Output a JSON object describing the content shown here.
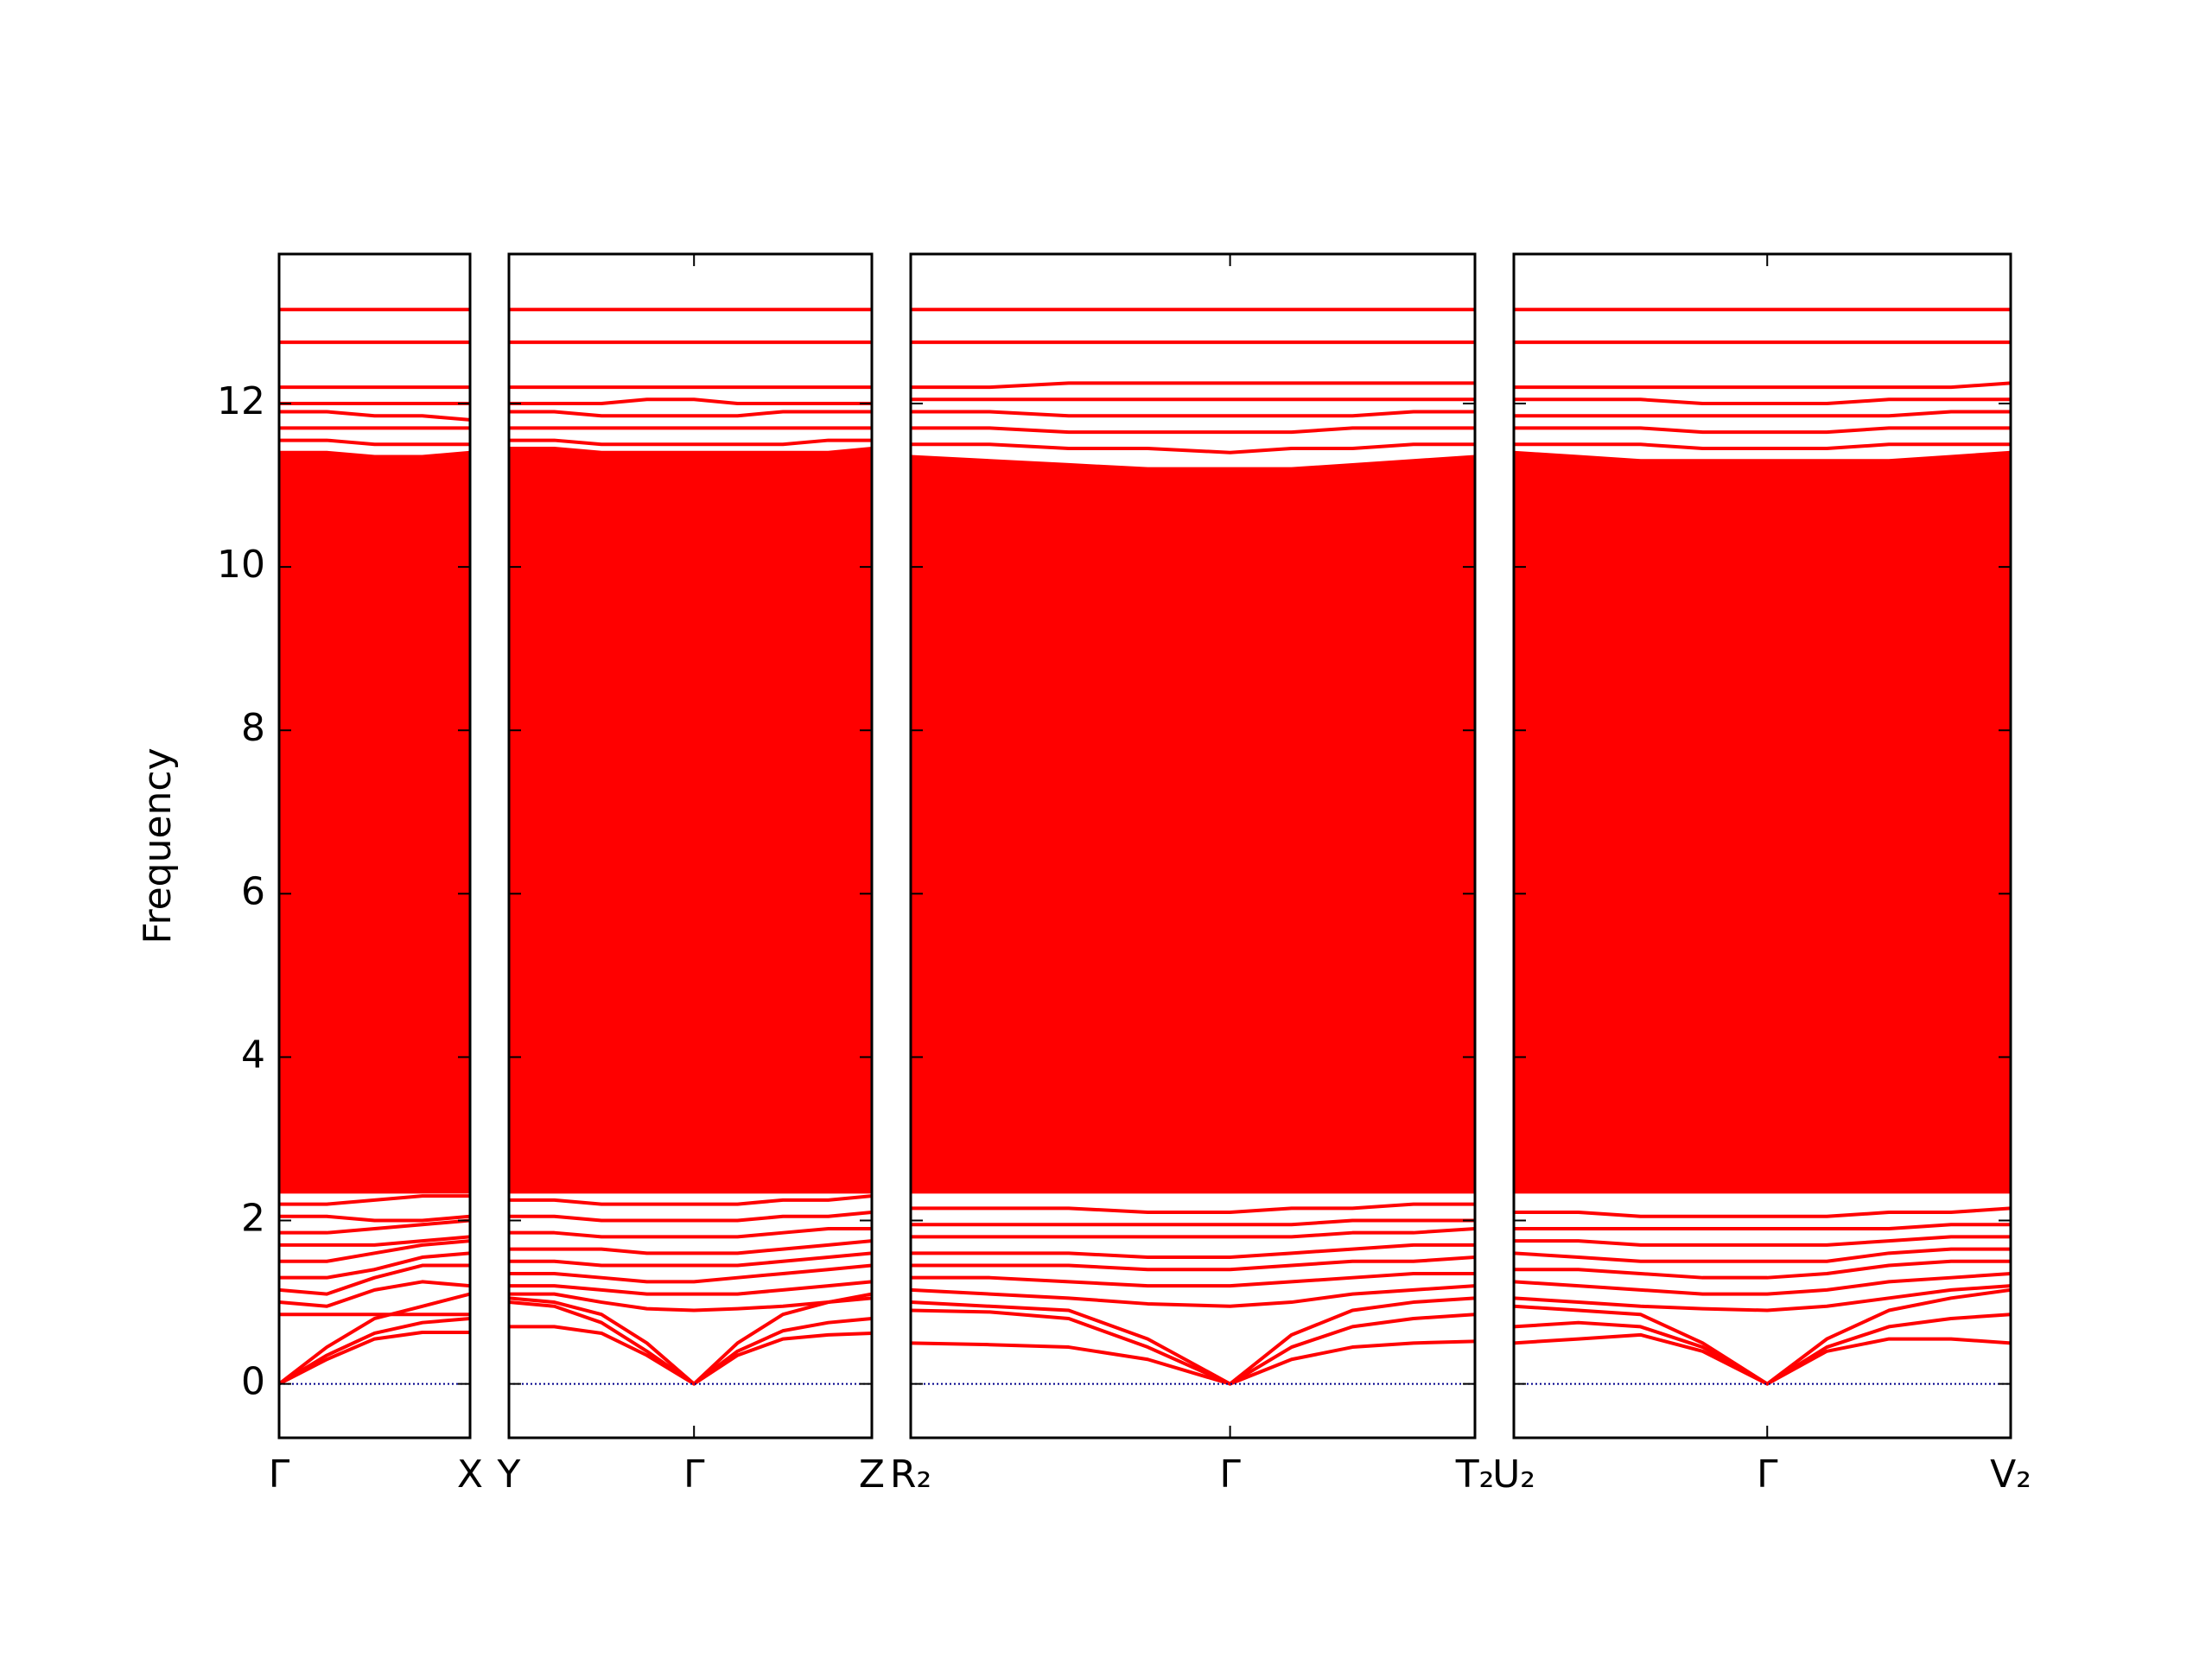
{
  "chart_data": [
    {
      "type": "line",
      "ylabel": "Frequency",
      "color": "#ff0000",
      "x": [
        0,
        0.25,
        0.5,
        0.75,
        1
      ],
      "xlim": [
        0,
        1
      ],
      "xticks": [
        {
          "value": 0,
          "label": "Γ"
        },
        {
          "value": 1,
          "label": "X"
        }
      ],
      "ylim": [
        -0.66,
        13.83
      ],
      "yticks": [
        0,
        2,
        4,
        6,
        8,
        10,
        12
      ],
      "ytick_labels": true,
      "zero_line": {
        "y": 0,
        "color": "#00008b"
      },
      "envelope": {
        "lower": [
          2.35,
          2.35,
          2.35,
          2.35,
          2.35
        ],
        "upper": [
          11.4,
          11.4,
          11.35,
          11.35,
          11.4
        ]
      },
      "series": [
        {
          "values": [
            0,
            0.3,
            0.55,
            0.63,
            0.63
          ]
        },
        {
          "values": [
            0,
            0.35,
            0.62,
            0.75,
            0.8
          ]
        },
        {
          "values": [
            0,
            0.45,
            0.8,
            0.95,
            1.1
          ]
        },
        {
          "values": [
            0.85,
            0.85,
            0.85,
            0.85,
            0.85
          ]
        },
        {
          "values": [
            1.0,
            0.95,
            1.15,
            1.25,
            1.2
          ]
        },
        {
          "values": [
            1.15,
            1.1,
            1.3,
            1.45,
            1.45
          ]
        },
        {
          "values": [
            1.3,
            1.3,
            1.4,
            1.55,
            1.6
          ]
        },
        {
          "values": [
            1.5,
            1.5,
            1.6,
            1.7,
            1.75
          ]
        },
        {
          "values": [
            1.7,
            1.7,
            1.7,
            1.75,
            1.8
          ]
        },
        {
          "values": [
            1.85,
            1.85,
            1.9,
            1.95,
            2.0
          ]
        },
        {
          "values": [
            2.05,
            2.05,
            2.0,
            2.0,
            2.05
          ]
        },
        {
          "values": [
            2.2,
            2.2,
            2.25,
            2.3,
            2.3
          ]
        },
        {
          "values": [
            11.55,
            11.55,
            11.5,
            11.5,
            11.5
          ]
        },
        {
          "values": [
            11.7,
            11.7,
            11.7,
            11.7,
            11.7
          ]
        },
        {
          "values": [
            11.9,
            11.9,
            11.85,
            11.85,
            11.8
          ]
        },
        {
          "values": [
            12.0,
            12.0,
            12.0,
            12.0,
            12.0
          ]
        },
        {
          "values": [
            12.2,
            12.2,
            12.2,
            12.2,
            12.2
          ]
        },
        {
          "values": [
            12.75,
            12.75,
            12.75,
            12.75,
            12.75
          ]
        },
        {
          "values": [
            13.15,
            13.15,
            13.15,
            13.15,
            13.15
          ]
        }
      ]
    },
    {
      "type": "line",
      "color": "#ff0000",
      "x": [
        0,
        0.125,
        0.255,
        0.38,
        0.51,
        0.63,
        0.755,
        0.88,
        1
      ],
      "xlim": [
        0,
        1
      ],
      "xticks": [
        {
          "value": 0,
          "label": "Y"
        },
        {
          "value": 0.51,
          "label": "Γ"
        },
        {
          "value": 1,
          "label": "Z"
        }
      ],
      "ylim": [
        -0.66,
        13.83
      ],
      "yticks": [
        0,
        2,
        4,
        6,
        8,
        10,
        12
      ],
      "zero_line": {
        "y": 0,
        "color": "#00008b"
      },
      "envelope": {
        "lower": [
          2.35,
          2.35,
          2.35,
          2.35,
          2.35,
          2.35,
          2.35,
          2.35,
          2.35
        ],
        "upper": [
          11.45,
          11.45,
          11.4,
          11.4,
          11.4,
          11.4,
          11.4,
          11.4,
          11.45
        ]
      },
      "series": [
        {
          "values": [
            1.0,
            0.95,
            0.75,
            0.4,
            0,
            0.35,
            0.55,
            0.6,
            0.62
          ]
        },
        {
          "values": [
            0.7,
            0.7,
            0.62,
            0.35,
            0,
            0.4,
            0.65,
            0.75,
            0.8
          ]
        },
        {
          "values": [
            1.05,
            1.0,
            0.85,
            0.5,
            0,
            0.5,
            0.85,
            1.0,
            1.05
          ]
        },
        {
          "values": [
            1.1,
            1.1,
            1.0,
            0.92,
            0.9,
            0.92,
            0.95,
            1.0,
            1.1
          ]
        },
        {
          "values": [
            1.2,
            1.2,
            1.15,
            1.1,
            1.1,
            1.1,
            1.15,
            1.2,
            1.25
          ]
        },
        {
          "values": [
            1.35,
            1.35,
            1.3,
            1.25,
            1.25,
            1.3,
            1.35,
            1.4,
            1.45
          ]
        },
        {
          "values": [
            1.5,
            1.5,
            1.45,
            1.45,
            1.45,
            1.45,
            1.5,
            1.55,
            1.6
          ]
        },
        {
          "values": [
            1.65,
            1.65,
            1.65,
            1.6,
            1.6,
            1.6,
            1.65,
            1.7,
            1.75
          ]
        },
        {
          "values": [
            1.85,
            1.85,
            1.8,
            1.8,
            1.8,
            1.8,
            1.85,
            1.9,
            1.9
          ]
        },
        {
          "values": [
            2.05,
            2.05,
            2.0,
            2.0,
            2.0,
            2.0,
            2.05,
            2.05,
            2.1
          ]
        },
        {
          "values": [
            2.25,
            2.25,
            2.2,
            2.2,
            2.2,
            2.2,
            2.25,
            2.25,
            2.3
          ]
        },
        {
          "values": [
            11.55,
            11.55,
            11.5,
            11.5,
            11.5,
            11.5,
            11.5,
            11.55,
            11.55
          ]
        },
        {
          "values": [
            11.7,
            11.7,
            11.7,
            11.7,
            11.7,
            11.7,
            11.7,
            11.7,
            11.7
          ]
        },
        {
          "values": [
            11.9,
            11.9,
            11.85,
            11.85,
            11.85,
            11.85,
            11.9,
            11.9,
            11.9
          ]
        },
        {
          "values": [
            12.0,
            12.0,
            12.0,
            12.05,
            12.05,
            12.0,
            12.0,
            12.0,
            12.0
          ]
        },
        {
          "values": [
            12.2,
            12.2,
            12.2,
            12.2,
            12.2,
            12.2,
            12.2,
            12.2,
            12.2
          ]
        },
        {
          "values": [
            12.75,
            12.75,
            12.75,
            12.75,
            12.75,
            12.75,
            12.75,
            12.75,
            12.75
          ]
        },
        {
          "values": [
            13.15,
            13.15,
            13.15,
            13.15,
            13.15,
            13.15,
            13.15,
            13.15,
            13.15
          ]
        }
      ]
    },
    {
      "type": "line",
      "color": "#ff0000",
      "x": [
        0,
        0.14,
        0.28,
        0.42,
        0.566,
        0.675,
        0.783,
        0.891,
        1
      ],
      "xlim": [
        0,
        1
      ],
      "xticks": [
        {
          "value": 0,
          "label": "R₂"
        },
        {
          "value": 0.566,
          "label": "Γ"
        },
        {
          "value": 1,
          "label": "T₂"
        }
      ],
      "ylim": [
        -0.66,
        13.83
      ],
      "yticks": [
        0,
        2,
        4,
        6,
        8,
        10,
        12
      ],
      "zero_line": {
        "y": 0,
        "color": "#00008b"
      },
      "envelope": {
        "lower": [
          2.35,
          2.35,
          2.35,
          2.35,
          2.35,
          2.35,
          2.35,
          2.35,
          2.35
        ],
        "upper": [
          11.35,
          11.3,
          11.25,
          11.2,
          11.2,
          11.2,
          11.25,
          11.3,
          11.35
        ]
      },
      "series": [
        {
          "values": [
            0.5,
            0.48,
            0.45,
            0.3,
            0,
            0.3,
            0.45,
            0.5,
            0.52
          ]
        },
        {
          "values": [
            0.9,
            0.88,
            0.8,
            0.45,
            0,
            0.45,
            0.7,
            0.8,
            0.85
          ]
        },
        {
          "values": [
            1.0,
            0.95,
            0.9,
            0.55,
            0,
            0.6,
            0.9,
            1.0,
            1.05
          ]
        },
        {
          "values": [
            1.15,
            1.1,
            1.05,
            0.98,
            0.95,
            1.0,
            1.1,
            1.15,
            1.2
          ]
        },
        {
          "values": [
            1.3,
            1.3,
            1.25,
            1.2,
            1.2,
            1.25,
            1.3,
            1.35,
            1.35
          ]
        },
        {
          "values": [
            1.45,
            1.45,
            1.45,
            1.4,
            1.4,
            1.45,
            1.5,
            1.5,
            1.55
          ]
        },
        {
          "values": [
            1.6,
            1.6,
            1.6,
            1.55,
            1.55,
            1.6,
            1.65,
            1.7,
            1.7
          ]
        },
        {
          "values": [
            1.8,
            1.8,
            1.8,
            1.8,
            1.8,
            1.8,
            1.85,
            1.85,
            1.9
          ]
        },
        {
          "values": [
            1.95,
            1.95,
            1.95,
            1.95,
            1.95,
            1.95,
            2.0,
            2.0,
            2.0
          ]
        },
        {
          "values": [
            2.15,
            2.15,
            2.15,
            2.1,
            2.1,
            2.15,
            2.15,
            2.2,
            2.2
          ]
        },
        {
          "values": [
            11.5,
            11.5,
            11.45,
            11.45,
            11.4,
            11.45,
            11.45,
            11.5,
            11.5
          ]
        },
        {
          "values": [
            11.7,
            11.7,
            11.65,
            11.65,
            11.65,
            11.65,
            11.7,
            11.7,
            11.7
          ]
        },
        {
          "values": [
            11.9,
            11.9,
            11.85,
            11.85,
            11.85,
            11.85,
            11.85,
            11.9,
            11.9
          ]
        },
        {
          "values": [
            12.05,
            12.05,
            12.05,
            12.05,
            12.05,
            12.05,
            12.05,
            12.05,
            12.05
          ]
        },
        {
          "values": [
            12.2,
            12.2,
            12.25,
            12.25,
            12.25,
            12.25,
            12.25,
            12.25,
            12.25
          ]
        },
        {
          "values": [
            12.75,
            12.75,
            12.75,
            12.75,
            12.75,
            12.75,
            12.75,
            12.75,
            12.75
          ]
        },
        {
          "values": [
            13.15,
            13.15,
            13.15,
            13.15,
            13.15,
            13.15,
            13.15,
            13.15,
            13.15
          ]
        }
      ]
    },
    {
      "type": "line",
      "color": "#ff0000",
      "x": [
        0,
        0.13,
        0.255,
        0.38,
        0.51,
        0.63,
        0.755,
        0.88,
        1
      ],
      "xlim": [
        0,
        1
      ],
      "xticks": [
        {
          "value": 0,
          "label": "U₂"
        },
        {
          "value": 0.51,
          "label": "Γ"
        },
        {
          "value": 1,
          "label": "V₂"
        }
      ],
      "ylim": [
        -0.66,
        13.83
      ],
      "yticks": [
        0,
        2,
        4,
        6,
        8,
        10,
        12
      ],
      "zero_line": {
        "y": 0,
        "color": "#00008b"
      },
      "envelope": {
        "lower": [
          2.35,
          2.35,
          2.35,
          2.35,
          2.35,
          2.35,
          2.35,
          2.35,
          2.35
        ],
        "upper": [
          11.4,
          11.35,
          11.3,
          11.3,
          11.3,
          11.3,
          11.3,
          11.35,
          11.4
        ]
      },
      "series": [
        {
          "values": [
            0.5,
            0.55,
            0.6,
            0.4,
            0,
            0.4,
            0.55,
            0.55,
            0.5
          ]
        },
        {
          "values": [
            0.7,
            0.75,
            0.7,
            0.45,
            0,
            0.45,
            0.7,
            0.8,
            0.85
          ]
        },
        {
          "values": [
            0.95,
            0.9,
            0.85,
            0.5,
            0,
            0.55,
            0.9,
            1.05,
            1.15
          ]
        },
        {
          "values": [
            1.05,
            1.0,
            0.95,
            0.92,
            0.9,
            0.95,
            1.05,
            1.15,
            1.2
          ]
        },
        {
          "values": [
            1.25,
            1.2,
            1.15,
            1.1,
            1.1,
            1.15,
            1.25,
            1.3,
            1.35
          ]
        },
        {
          "values": [
            1.4,
            1.4,
            1.35,
            1.3,
            1.3,
            1.35,
            1.45,
            1.5,
            1.5
          ]
        },
        {
          "values": [
            1.6,
            1.55,
            1.5,
            1.5,
            1.5,
            1.5,
            1.6,
            1.65,
            1.65
          ]
        },
        {
          "values": [
            1.75,
            1.75,
            1.7,
            1.7,
            1.7,
            1.7,
            1.75,
            1.8,
            1.8
          ]
        },
        {
          "values": [
            1.9,
            1.9,
            1.9,
            1.9,
            1.9,
            1.9,
            1.9,
            1.95,
            1.95
          ]
        },
        {
          "values": [
            2.1,
            2.1,
            2.05,
            2.05,
            2.05,
            2.05,
            2.1,
            2.1,
            2.15
          ]
        },
        {
          "values": [
            11.5,
            11.5,
            11.5,
            11.45,
            11.45,
            11.45,
            11.5,
            11.5,
            11.5
          ]
        },
        {
          "values": [
            11.7,
            11.7,
            11.7,
            11.65,
            11.65,
            11.65,
            11.7,
            11.7,
            11.7
          ]
        },
        {
          "values": [
            11.85,
            11.85,
            11.85,
            11.85,
            11.85,
            11.85,
            11.85,
            11.9,
            11.9
          ]
        },
        {
          "values": [
            12.05,
            12.05,
            12.05,
            12.0,
            12.0,
            12.0,
            12.05,
            12.05,
            12.05
          ]
        },
        {
          "values": [
            12.2,
            12.2,
            12.2,
            12.2,
            12.2,
            12.2,
            12.2,
            12.2,
            12.25
          ]
        },
        {
          "values": [
            12.75,
            12.75,
            12.75,
            12.75,
            12.75,
            12.75,
            12.75,
            12.75,
            12.75
          ]
        },
        {
          "values": [
            13.15,
            13.15,
            13.15,
            13.15,
            13.15,
            13.15,
            13.15,
            13.15,
            13.15
          ]
        }
      ]
    }
  ]
}
